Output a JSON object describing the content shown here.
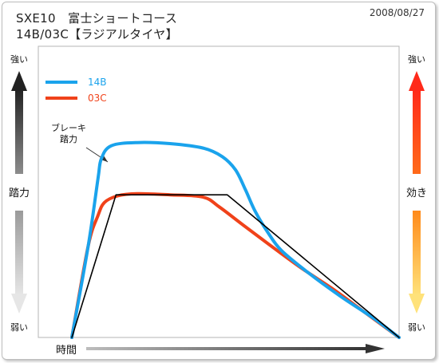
{
  "header": {
    "title_line1": "SXE10　富士ショートコース",
    "title_line2": "14B/03C【ラジアルタイヤ】",
    "date": "2008/08/27"
  },
  "chart_data": {
    "type": "line",
    "title": "SXE10　富士ショートコース / 14B/03C【ラジアルタイヤ】",
    "xlabel": "時間",
    "ylabel_left": "踏力",
    "ylabel_right": "効き",
    "left_axis_ticks": {
      "top": "強い",
      "bottom": "弱い"
    },
    "right_axis_ticks": {
      "top": "強い",
      "bottom": "弱い"
    },
    "x_range": [
      0,
      100
    ],
    "y_range": [
      0,
      100
    ],
    "grid": false,
    "legend_position": "top-left",
    "annotation": "ブレーキ\n踏力",
    "colors": {
      "14B": "#1aa3ec",
      "03C": "#f0421a",
      "brake_pedal_force": "#000000"
    },
    "series": [
      {
        "name": "14B",
        "color": "#1aa3ec",
        "points": [
          [
            0,
            0
          ],
          [
            5,
            42
          ],
          [
            8,
            73
          ],
          [
            9,
            82
          ],
          [
            12,
            88
          ],
          [
            20,
            89.5
          ],
          [
            30,
            89
          ],
          [
            40,
            87
          ],
          [
            46,
            83
          ],
          [
            50,
            77
          ],
          [
            53,
            68
          ],
          [
            56,
            58
          ],
          [
            60,
            48
          ],
          [
            64,
            40
          ],
          [
            72,
            30
          ],
          [
            82,
            19
          ],
          [
            92,
            9
          ],
          [
            100,
            0
          ]
        ]
      },
      {
        "name": "03C",
        "color": "#f0421a",
        "points": [
          [
            0,
            0
          ],
          [
            5,
            42
          ],
          [
            8,
            56
          ],
          [
            10,
            62
          ],
          [
            14,
            65
          ],
          [
            20,
            66
          ],
          [
            30,
            65.5
          ],
          [
            40,
            64.5
          ],
          [
            45,
            60
          ],
          [
            52,
            52
          ],
          [
            60,
            43
          ],
          [
            70,
            32
          ],
          [
            80,
            22
          ],
          [
            90,
            11
          ],
          [
            100,
            0
          ]
        ]
      },
      {
        "name": "",
        "color": "#000000",
        "points": [
          [
            0,
            0
          ],
          [
            13.5,
            65.5
          ],
          [
            47.5,
            65.5
          ],
          [
            100,
            0
          ]
        ]
      }
    ]
  }
}
